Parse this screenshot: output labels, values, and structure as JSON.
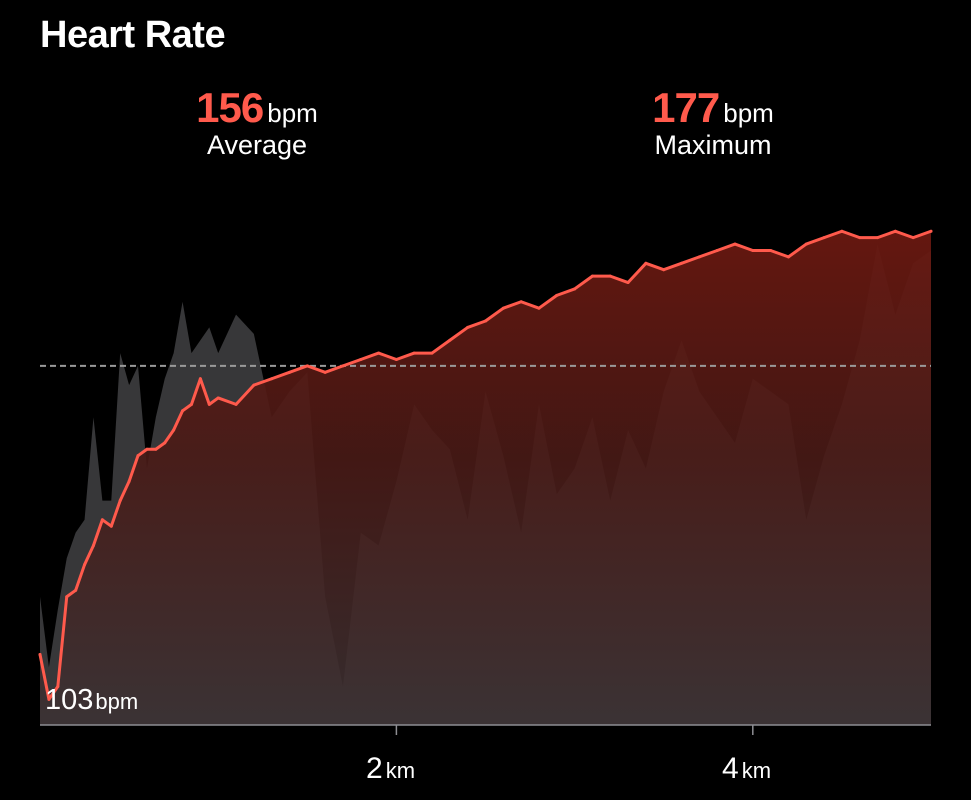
{
  "header": {
    "title": "Heart Rate"
  },
  "stats": {
    "average": {
      "value": "156",
      "unit": "bpm",
      "label": "Average"
    },
    "maximum": {
      "value": "177",
      "unit": "bpm",
      "label": "Maximum"
    }
  },
  "colors": {
    "accent": "#ff5a4c",
    "background": "#000000",
    "axis": "#8e8e93",
    "elevation_fill": "#4a4a4c",
    "average_line": "#9a9a9a"
  },
  "chart_data": {
    "type": "line",
    "x_unit": "km",
    "y_unit": "bpm",
    "xlim": [
      0,
      5
    ],
    "ylim": [
      100,
      180
    ],
    "x_ticks": [
      {
        "value": 2,
        "label": "2",
        "unit": "km"
      },
      {
        "value": 4,
        "label": "4",
        "unit": "km"
      }
    ],
    "min_label": {
      "value": "103",
      "unit": "bpm"
    },
    "average_line": 156,
    "grid": false,
    "series": [
      {
        "kind": "heart-rate",
        "x": [
          0,
          0.05,
          0.1,
          0.15,
          0.2,
          0.25,
          0.3,
          0.35,
          0.4,
          0.45,
          0.5,
          0.55,
          0.6,
          0.65,
          0.7,
          0.75,
          0.8,
          0.85,
          0.9,
          0.95,
          1.0,
          1.1,
          1.2,
          1.3,
          1.4,
          1.5,
          1.6,
          1.7,
          1.8,
          1.9,
          2.0,
          2.1,
          2.2,
          2.3,
          2.4,
          2.5,
          2.6,
          2.7,
          2.8,
          2.9,
          3.0,
          3.1,
          3.2,
          3.3,
          3.4,
          3.5,
          3.6,
          3.7,
          3.8,
          3.9,
          4.0,
          4.1,
          4.2,
          4.3,
          4.4,
          4.5,
          4.6,
          4.7,
          4.8,
          4.9,
          5.0
        ],
        "y": [
          111,
          104,
          106,
          120,
          121,
          125,
          128,
          132,
          131,
          135,
          138,
          142,
          143,
          143,
          144,
          146,
          149,
          150,
          154,
          150,
          151,
          150,
          153,
          154,
          155,
          156,
          155,
          156,
          157,
          158,
          157,
          158,
          158,
          160,
          162,
          163,
          165,
          166,
          165,
          167,
          168,
          170,
          170,
          169,
          172,
          171,
          172,
          173,
          174,
          175,
          174,
          174,
          173,
          175,
          176,
          177,
          176,
          176,
          177,
          176,
          177
        ]
      },
      {
        "kind": "elevation",
        "x": [
          0,
          0.05,
          0.1,
          0.15,
          0.2,
          0.25,
          0.3,
          0.35,
          0.4,
          0.45,
          0.5,
          0.55,
          0.6,
          0.65,
          0.7,
          0.75,
          0.8,
          0.85,
          0.9,
          0.95,
          1.0,
          1.1,
          1.2,
          1.3,
          1.4,
          1.5,
          1.6,
          1.7,
          1.8,
          1.9,
          2.0,
          2.1,
          2.2,
          2.3,
          2.4,
          2.5,
          2.6,
          2.7,
          2.8,
          2.9,
          3.0,
          3.1,
          3.2,
          3.3,
          3.4,
          3.5,
          3.6,
          3.7,
          3.8,
          3.9,
          4.0,
          4.1,
          4.2,
          4.3,
          4.4,
          4.5,
          4.6,
          4.7,
          4.8,
          4.9,
          5.0
        ],
        "y": [
          120,
          109,
          118,
          126,
          130,
          132,
          148,
          135,
          135,
          158,
          153,
          156,
          140,
          148,
          154,
          158,
          166,
          158,
          160,
          162,
          158,
          164,
          161,
          148,
          152,
          155,
          120,
          106,
          130,
          128,
          138,
          150,
          146,
          143,
          132,
          152,
          142,
          130,
          150,
          136,
          140,
          148,
          135,
          146,
          140,
          152,
          160,
          152,
          148,
          144,
          154,
          152,
          150,
          132,
          142,
          150,
          160,
          175,
          164,
          172,
          174
        ]
      }
    ]
  }
}
